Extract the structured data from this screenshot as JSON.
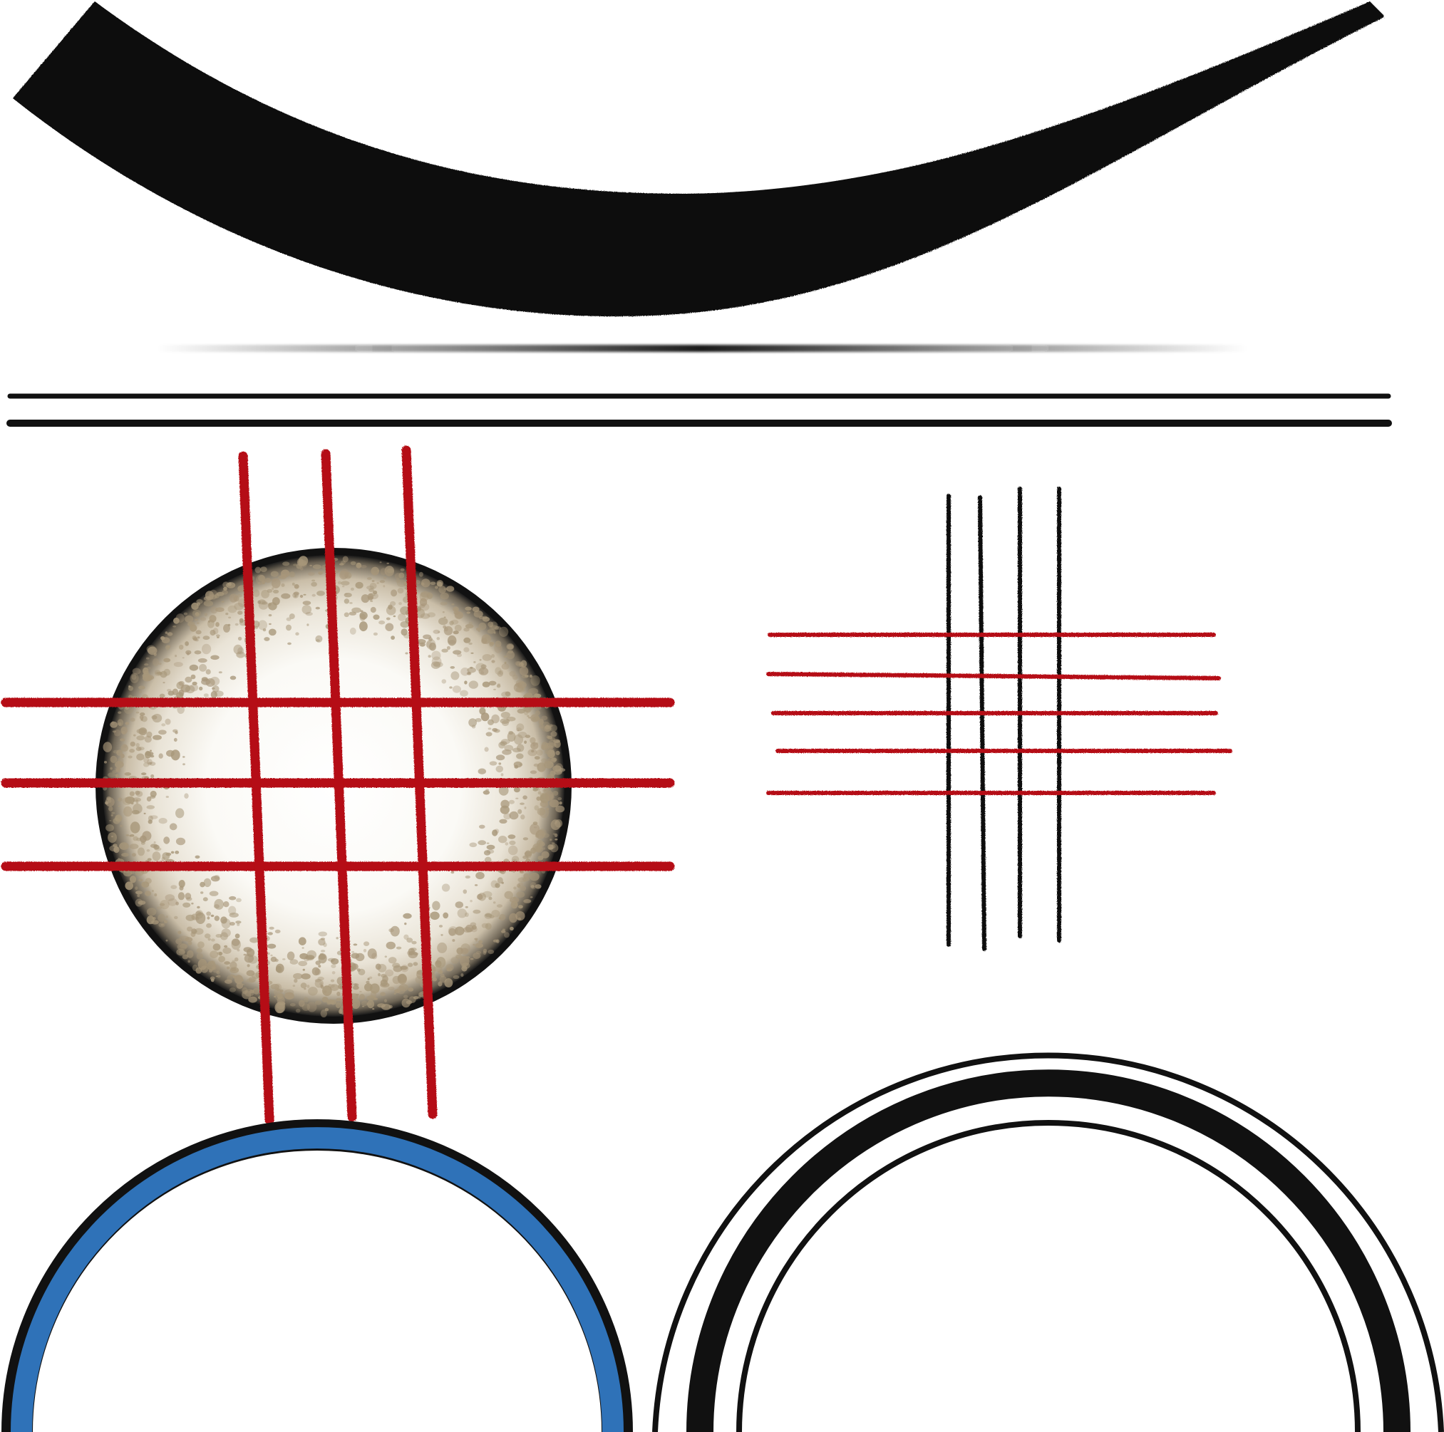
{
  "palette": {
    "background": "#ffffff",
    "black": "#111111",
    "red": "#b50d12",
    "blue": "#2f72b8",
    "speckle": "#a8977a",
    "moon_center": "#ffffff"
  },
  "shapes": {
    "top_arc": "black-curved-band",
    "blur_line": "soft-grey-line",
    "double_rule": "two-parallel-black-lines",
    "moon": "speckled-moon-circle",
    "moon_grid": "red-grid-over-moon",
    "small_grid": "red-and-black-small-grid",
    "blue_arch": "blue-outlined-arch",
    "triple_arch": "concentric-black-arches"
  }
}
